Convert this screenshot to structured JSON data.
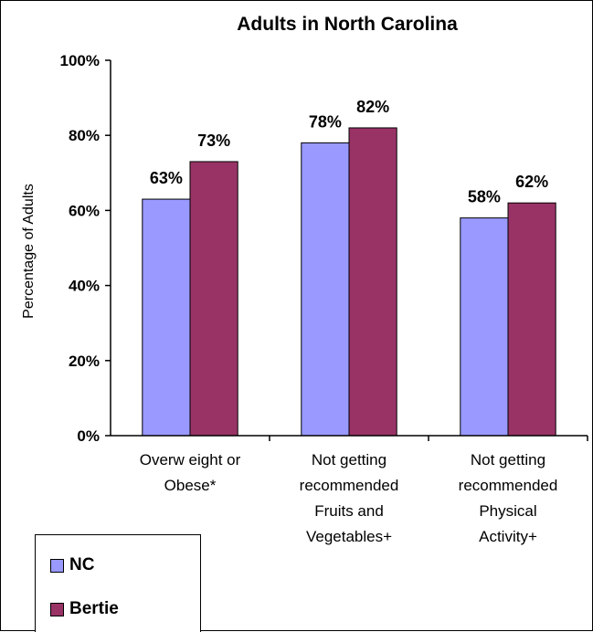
{
  "chart_data": {
    "type": "bar",
    "title": "Adults in North Carolina",
    "ylabel": "Percentage of Adults",
    "xlabel": "",
    "ylim": [
      0,
      100
    ],
    "yticks": [
      "0%",
      "20%",
      "40%",
      "60%",
      "80%",
      "100%"
    ],
    "categories": [
      [
        "Overw eight or",
        "Obese*"
      ],
      [
        "Not getting",
        "recommended",
        "Fruits and",
        "Vegetables+"
      ],
      [
        "Not getting",
        "recommended",
        "Physical",
        "Activity+"
      ]
    ],
    "series": [
      {
        "name": "NC",
        "color": "#9999ff",
        "values": [
          63,
          78,
          58
        ],
        "labels": [
          "63%",
          "78%",
          "58%"
        ]
      },
      {
        "name": "Bertie",
        "color": "#993366",
        "values": [
          73,
          82,
          62
        ],
        "labels": [
          "73%",
          "82%",
          "62%"
        ]
      }
    ],
    "grid": false,
    "legend_position": "bottom-left"
  }
}
